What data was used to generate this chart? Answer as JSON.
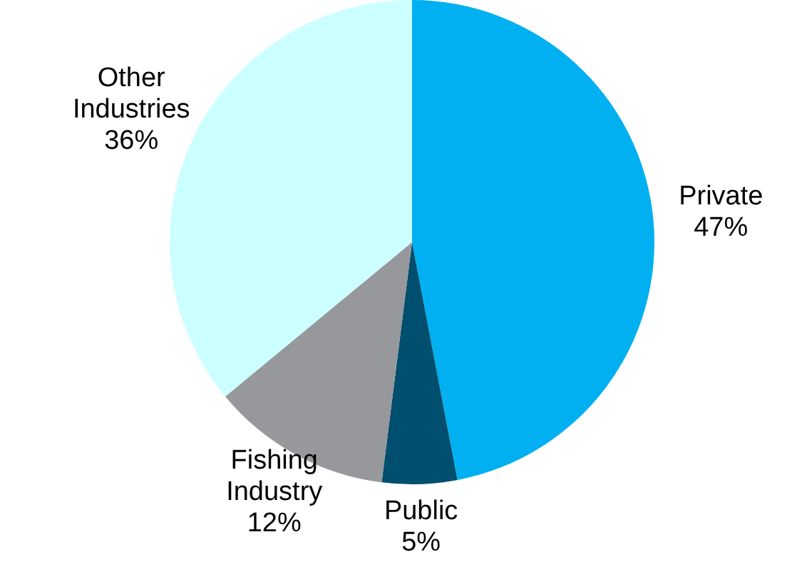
{
  "chart_data": {
    "type": "pie",
    "categories": [
      "Private",
      "Public",
      "Fishing Industry",
      "Other Industries"
    ],
    "values": [
      47,
      5,
      12,
      36
    ],
    "colors": [
      "#00b0f0",
      "#004f6e",
      "#96989b",
      "#ccffff"
    ],
    "value_labels": [
      "47%",
      "5%",
      "12%",
      "36%"
    ]
  }
}
